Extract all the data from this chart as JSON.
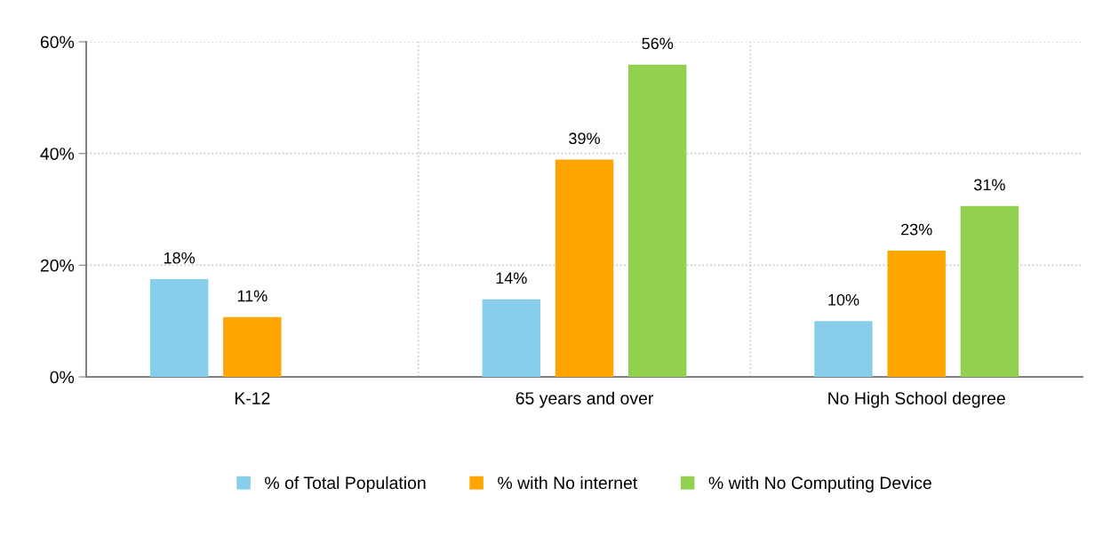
{
  "chart_data": {
    "type": "bar",
    "categories": [
      "K-12",
      "65 years and over",
      "No High School degree"
    ],
    "series": [
      {
        "name": "% of Total Population",
        "color": "#87ceeb",
        "values": [
          17.5,
          13.9,
          10.0
        ],
        "value_labels": [
          "18%",
          "14%",
          "10%"
        ]
      },
      {
        "name": "% with No internet",
        "color": "#ffa500",
        "values": [
          10.7,
          38.9,
          22.6
        ],
        "value_labels": [
          "11%",
          "39%",
          "23%"
        ]
      },
      {
        "name": "% with No Computing Device",
        "color": "#92d050",
        "values": [
          null,
          55.9,
          30.6
        ],
        "value_labels": [
          null,
          "56%",
          "31%"
        ]
      }
    ],
    "ylim": [
      0,
      60
    ],
    "yticks": [
      {
        "value": 0,
        "label": "0%"
      },
      {
        "value": 20,
        "label": "20%"
      },
      {
        "value": 40,
        "label": "40%"
      },
      {
        "value": 60,
        "label": "60%"
      }
    ],
    "grid": true,
    "legend": "bottom"
  }
}
